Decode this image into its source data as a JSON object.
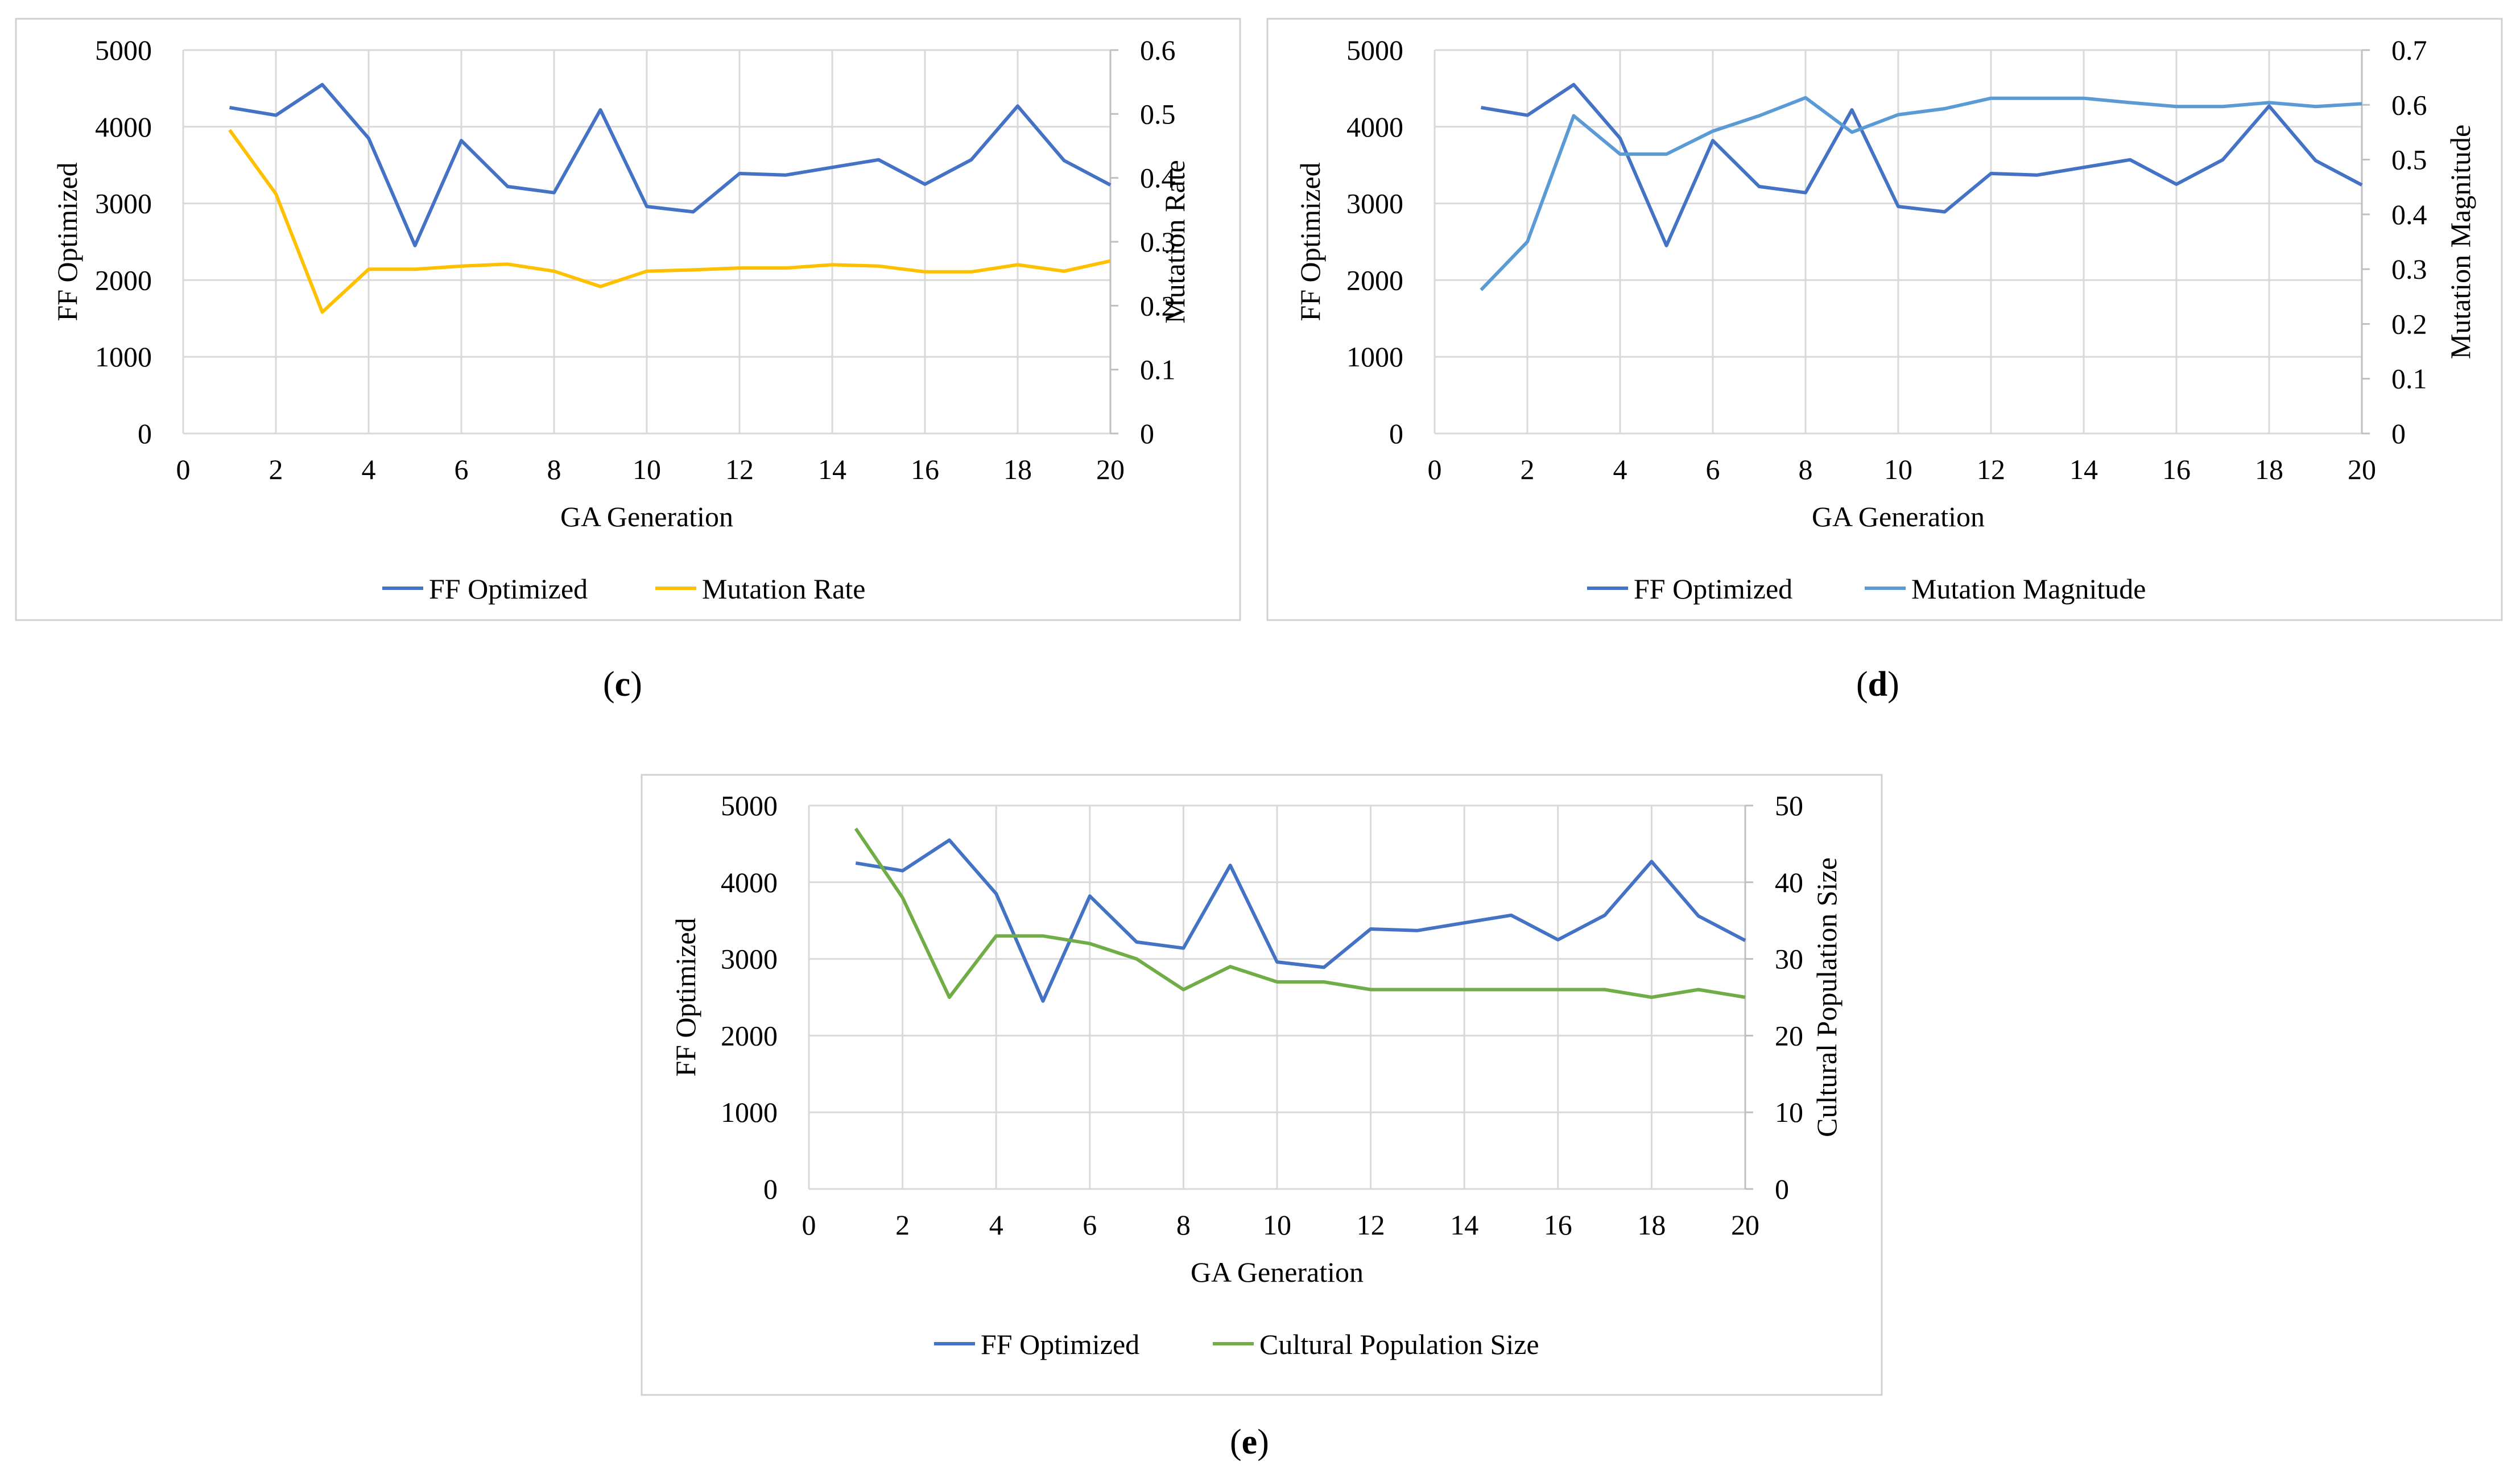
{
  "chart_data": [
    {
      "id": "c",
      "type": "line",
      "caption_letter": "c",
      "xlabel": "GA Generation",
      "ylabel_left": "FF Optimized",
      "ylabel_right": "Mutation Rate",
      "xlim": [
        0,
        20
      ],
      "xticks": [
        0,
        2,
        4,
        6,
        8,
        10,
        12,
        14,
        16,
        18,
        20
      ],
      "ylim_left": [
        0,
        5000
      ],
      "yticks_left": [
        0,
        1000,
        2000,
        3000,
        4000,
        5000
      ],
      "ylim_right": [
        0,
        0.6
      ],
      "yticks_right": [
        0,
        0.1,
        0.2,
        0.3,
        0.4,
        0.5,
        0.6
      ],
      "x": [
        1,
        2,
        3,
        4,
        5,
        6,
        7,
        8,
        9,
        10,
        11,
        12,
        13,
        14,
        15,
        16,
        17,
        18,
        19,
        20
      ],
      "series": [
        {
          "name": "FF Optimized",
          "axis": "left",
          "color": "#4472C4",
          "values": [
            4250,
            4150,
            4550,
            3850,
            2450,
            3820,
            3220,
            3140,
            4220,
            2960,
            2890,
            3390,
            3370,
            3470,
            3570,
            3250,
            3570,
            4270,
            3560,
            3240
          ]
        },
        {
          "name": "Mutation Rate",
          "axis": "right",
          "color": "#FFC000",
          "values": [
            0.475,
            0.375,
            0.19,
            0.257,
            0.257,
            0.262,
            0.265,
            0.254,
            0.23,
            0.254,
            0.256,
            0.259,
            0.259,
            0.264,
            0.262,
            0.253,
            0.253,
            0.264,
            0.254,
            0.27
          ]
        }
      ]
    },
    {
      "id": "d",
      "type": "line",
      "caption_letter": "d",
      "xlabel": "GA Generation",
      "ylabel_left": "FF Optimized",
      "ylabel_right": "Mutation Magnitude",
      "xlim": [
        0,
        20
      ],
      "xticks": [
        0,
        2,
        4,
        6,
        8,
        10,
        12,
        14,
        16,
        18,
        20
      ],
      "ylim_left": [
        0,
        5000
      ],
      "yticks_left": [
        0,
        1000,
        2000,
        3000,
        4000,
        5000
      ],
      "ylim_right": [
        0,
        0.7
      ],
      "yticks_right": [
        0,
        0.1,
        0.2,
        0.3,
        0.4,
        0.5,
        0.6,
        0.7
      ],
      "x": [
        1,
        2,
        3,
        4,
        5,
        6,
        7,
        8,
        9,
        10,
        11,
        12,
        13,
        14,
        15,
        16,
        17,
        18,
        19,
        20
      ],
      "series": [
        {
          "name": "FF Optimized",
          "axis": "left",
          "color": "#4472C4",
          "values": [
            4250,
            4150,
            4550,
            3850,
            2450,
            3820,
            3220,
            3140,
            4220,
            2960,
            2890,
            3390,
            3370,
            3470,
            3570,
            3250,
            3570,
            4270,
            3560,
            3240
          ]
        },
        {
          "name": "Mutation Magnitude",
          "axis": "right",
          "color": "#5B9BD5",
          "values": [
            0.262,
            0.35,
            0.58,
            0.51,
            0.51,
            0.552,
            0.58,
            0.613,
            0.55,
            0.582,
            0.593,
            0.612,
            0.612,
            0.612,
            0.604,
            0.597,
            0.597,
            0.604,
            0.597,
            0.602
          ]
        }
      ]
    },
    {
      "id": "e",
      "type": "line",
      "caption_letter": "e",
      "xlabel": "GA Generation",
      "ylabel_left": "FF Optimized",
      "ylabel_right": "Cultural Population Size",
      "xlim": [
        0,
        20
      ],
      "xticks": [
        0,
        2,
        4,
        6,
        8,
        10,
        12,
        14,
        16,
        18,
        20
      ],
      "ylim_left": [
        0,
        5000
      ],
      "yticks_left": [
        0,
        1000,
        2000,
        3000,
        4000,
        5000
      ],
      "ylim_right": [
        0,
        50
      ],
      "yticks_right": [
        0,
        10,
        20,
        30,
        40,
        50
      ],
      "x": [
        1,
        2,
        3,
        4,
        5,
        6,
        7,
        8,
        9,
        10,
        11,
        12,
        13,
        14,
        15,
        16,
        17,
        18,
        19,
        20
      ],
      "series": [
        {
          "name": "FF Optimized",
          "axis": "left",
          "color": "#4472C4",
          "values": [
            4250,
            4150,
            4550,
            3850,
            2450,
            3820,
            3220,
            3140,
            4220,
            2960,
            2890,
            3390,
            3370,
            3470,
            3570,
            3250,
            3570,
            4270,
            3560,
            3240
          ]
        },
        {
          "name": "Cultural Population Size",
          "axis": "right",
          "color": "#70AD47",
          "values": [
            47,
            38,
            25,
            33,
            33,
            32,
            30,
            26,
            29,
            27,
            27,
            26,
            26,
            26,
            26,
            26,
            26,
            25,
            26,
            25
          ]
        }
      ]
    }
  ]
}
